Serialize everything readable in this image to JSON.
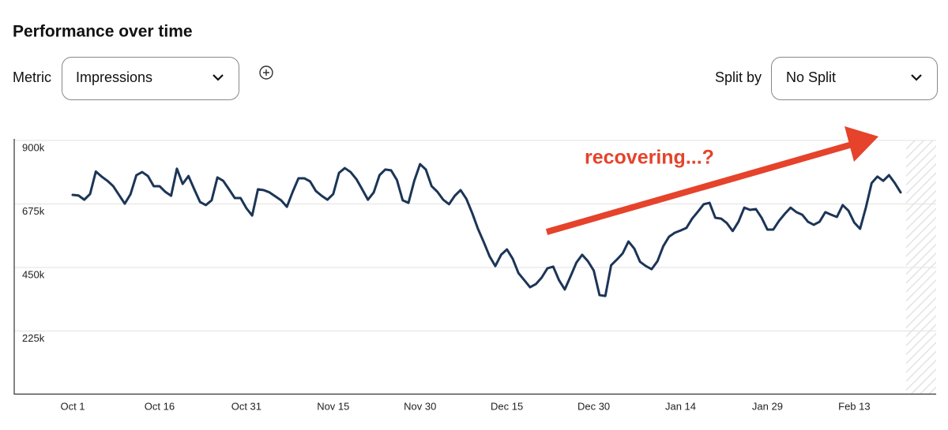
{
  "header": {
    "title": "Performance over time"
  },
  "controls": {
    "metric_label": "Metric",
    "metric_value": "Impressions",
    "split_label": "Split by",
    "split_value": "No Split"
  },
  "chart_data": {
    "type": "line",
    "annotation": "recovering...?",
    "categories": [
      "Oct 1",
      null,
      null,
      null,
      null,
      null,
      null,
      null,
      null,
      null,
      null,
      null,
      null,
      null,
      null,
      "Oct 16",
      null,
      null,
      null,
      null,
      null,
      null,
      null,
      null,
      null,
      null,
      null,
      null,
      null,
      null,
      "Oct 31",
      null,
      null,
      null,
      null,
      null,
      null,
      null,
      null,
      null,
      null,
      null,
      null,
      null,
      null,
      "Nov 15",
      null,
      null,
      null,
      null,
      null,
      null,
      null,
      null,
      null,
      null,
      null,
      null,
      null,
      null,
      "Nov 30",
      null,
      null,
      null,
      null,
      null,
      null,
      null,
      null,
      null,
      null,
      null,
      null,
      null,
      null,
      "Dec 15",
      null,
      null,
      null,
      null,
      null,
      null,
      null,
      null,
      null,
      null,
      null,
      null,
      null,
      null,
      "Dec 30",
      null,
      null,
      null,
      null,
      null,
      null,
      null,
      null,
      null,
      null,
      null,
      null,
      null,
      null,
      "Jan 14",
      null,
      null,
      null,
      null,
      null,
      null,
      null,
      null,
      null,
      null,
      null,
      null,
      null,
      null,
      "Jan 29",
      null,
      null,
      null,
      null,
      null,
      null,
      null,
      null,
      null,
      null,
      null,
      null,
      null,
      null,
      "Feb 13",
      null,
      null,
      null,
      null,
      null,
      null,
      null,
      null
    ],
    "series": [
      {
        "name": "Impressions",
        "color": "#1c3557",
        "values": [
          707000,
          705000,
          690000,
          710000,
          790000,
          772000,
          757000,
          738000,
          707000,
          676000,
          710000,
          777000,
          788000,
          774000,
          738000,
          738000,
          718000,
          704000,
          800000,
          746000,
          774000,
          727000,
          682000,
          671000,
          688000,
          769000,
          757000,
          727000,
          696000,
          696000,
          660000,
          634000,
          727000,
          724000,
          716000,
          702000,
          688000,
          665000,
          718000,
          766000,
          766000,
          755000,
          721000,
          704000,
          690000,
          710000,
          785000,
          802000,
          788000,
          763000,
          727000,
          690000,
          716000,
          777000,
          797000,
          794000,
          760000,
          688000,
          679000,
          757000,
          816000,
          797000,
          738000,
          718000,
          690000,
          674000,
          704000,
          724000,
          693000,
          643000,
          587000,
          540000,
          490000,
          455000,
          495000,
          514000,
          481000,
          430000,
          405000,
          380000,
          391000,
          414000,
          447000,
          453000,
          405000,
          372000,
          419000,
          467000,
          495000,
          472000,
          439000,
          352000,
          349000,
          458000,
          478000,
          500000,
          542000,
          517000,
          470000,
          455000,
          444000,
          472000,
          525000,
          559000,
          573000,
          581000,
          590000,
          623000,
          648000,
          674000,
          679000,
          626000,
          623000,
          607000,
          579000,
          612000,
          662000,
          654000,
          657000,
          626000,
          584000,
          584000,
          615000,
          640000,
          662000,
          646000,
          637000,
          612000,
          601000,
          612000,
          646000,
          637000,
          629000,
          671000,
          651000,
          609000,
          587000,
          662000,
          749000,
          772000,
          757000,
          777000,
          749000,
          716000
        ]
      }
    ],
    "ylim": [
      0,
      900000
    ],
    "yticks": [
      {
        "value": 225000,
        "label": "225k"
      },
      {
        "value": 450000,
        "label": "450k"
      },
      {
        "value": 675000,
        "label": "675k"
      },
      {
        "value": 900000,
        "label": "900k"
      }
    ],
    "grid": true
  }
}
